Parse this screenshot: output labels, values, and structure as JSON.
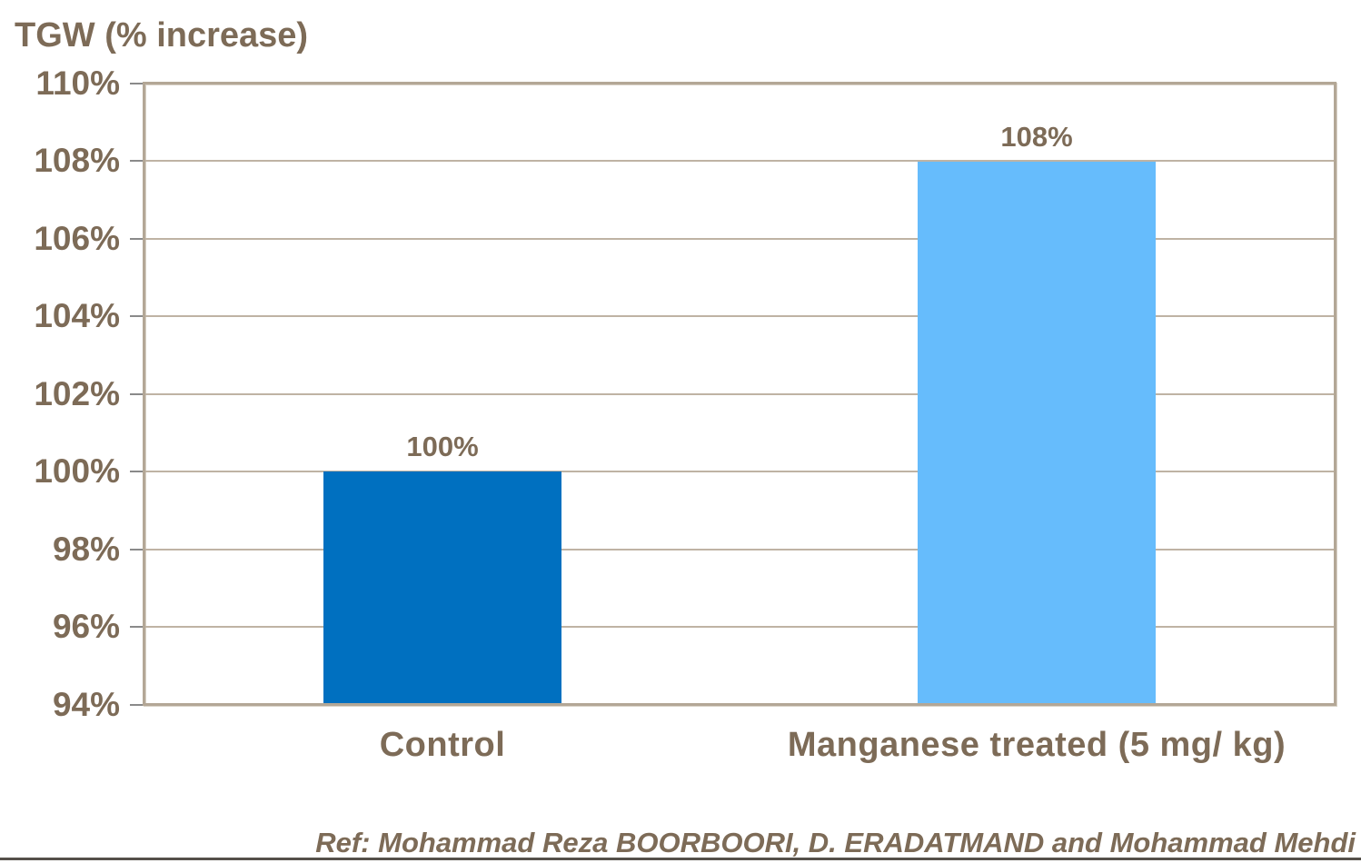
{
  "chart_data": {
    "type": "bar",
    "title": "TGW (% increase)",
    "categories": [
      "Control",
      "Manganese treated (5 mg/ kg)"
    ],
    "values": [
      100,
      108
    ],
    "value_labels": [
      "100%",
      "108%"
    ],
    "series_colors": [
      "#0070C0",
      "#66BCFC"
    ],
    "ylim": [
      94,
      110
    ],
    "y_tick_step": 2,
    "y_tick_suffix": "%",
    "y_tick_labels": [
      "110%",
      "108%",
      "106%",
      "104%",
      "102%",
      "100%",
      "98%",
      "96%",
      "94%"
    ],
    "grid": true,
    "legend": "none",
    "xlabel": "",
    "ylabel": "",
    "axis_text_color": "#7D6B57",
    "gridline_color": "#BFB3A4",
    "plot_border_color": "#B3A796"
  },
  "footer": {
    "reference": "Ref: Mohammad Reza BOORBOORI, D. ERADATMAND and Mohammad Mehdi"
  }
}
